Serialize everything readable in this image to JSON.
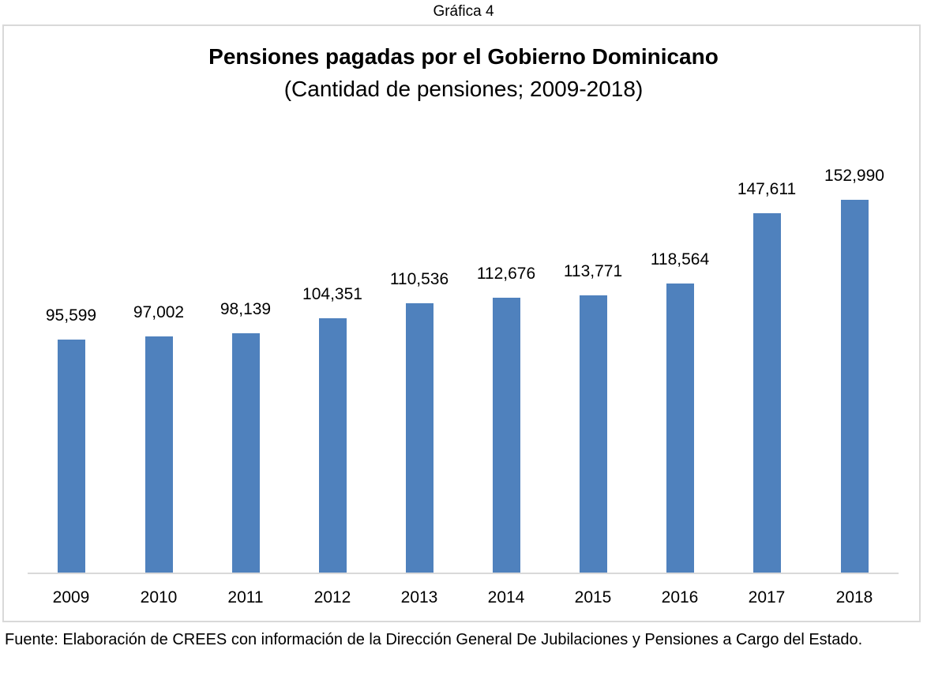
{
  "caption": "Gráfica 4",
  "title": "Pensiones pagadas por el Gobierno Dominicano",
  "subtitle": "(Cantidad de pensiones; 2009-2018)",
  "source": "Fuente: Elaboración de CREES con información de la Dirección General De Jubilaciones y Pensiones a Cargo del Estado.",
  "bar_color": "#4f81bd",
  "chart_data": {
    "type": "bar",
    "title": "Pensiones pagadas por el Gobierno Dominicano",
    "subtitle": "(Cantidad de pensiones; 2009-2018)",
    "categories": [
      "2009",
      "2010",
      "2011",
      "2012",
      "2013",
      "2014",
      "2015",
      "2016",
      "2017",
      "2018"
    ],
    "values": [
      95599,
      97002,
      98139,
      104351,
      110536,
      112676,
      113771,
      118564,
      147611,
      152990
    ],
    "value_labels": [
      "95,599",
      "97,002",
      "98,139",
      "104,351",
      "110,536",
      "112,676",
      "113,771",
      "118,564",
      "147,611",
      "152,990"
    ],
    "xlabel": "",
    "ylabel": "",
    "ylim": [
      0,
      160000
    ],
    "grid": false,
    "legend": null,
    "y_axis_visible": false
  }
}
